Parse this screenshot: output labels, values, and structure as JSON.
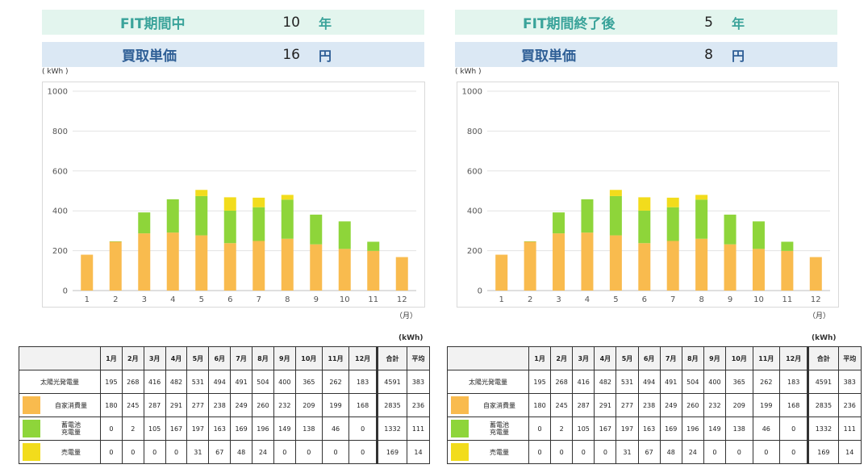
{
  "panels": [
    {
      "hdr1": {
        "label": "FIT期間中",
        "value": "10",
        "unit": "年"
      },
      "hdr2": {
        "label": "買取単価",
        "value": "16",
        "unit": "円"
      },
      "y_unit": "( kWh )",
      "x_unit": "（月）",
      "tbl_unit": "(kWh)"
    },
    {
      "hdr1": {
        "label": "FIT期間終了後",
        "value": "5",
        "unit": "年"
      },
      "hdr2": {
        "label": "買取単価",
        "value": "8",
        "unit": "円"
      },
      "y_unit": "( kWh )",
      "x_unit": "（月）",
      "tbl_unit": "(kWh)"
    }
  ],
  "table": {
    "headers": [
      "",
      "1月",
      "2月",
      "3月",
      "4月",
      "5月",
      "6月",
      "7月",
      "8月",
      "9月",
      "10月",
      "11月",
      "12月",
      "合計",
      "平均"
    ],
    "rows": [
      {
        "label": "太陽光発電量",
        "swatch": "",
        "values": [
          "195",
          "268",
          "416",
          "482",
          "531",
          "494",
          "491",
          "504",
          "400",
          "365",
          "262",
          "183",
          "4591",
          "383"
        ]
      },
      {
        "label": "自家消費量",
        "swatch": "#f9bb4e",
        "values": [
          "180",
          "245",
          "287",
          "291",
          "277",
          "238",
          "249",
          "260",
          "232",
          "209",
          "199",
          "168",
          "2835",
          "236"
        ]
      },
      {
        "label": "蓄電池\n充電量",
        "swatch": "#8ed53a",
        "values": [
          "0",
          "2",
          "105",
          "167",
          "197",
          "163",
          "169",
          "196",
          "149",
          "138",
          "46",
          "0",
          "1332",
          "111"
        ]
      },
      {
        "label": "売電量",
        "swatch": "#f2dc1c",
        "values": [
          "0",
          "0",
          "0",
          "0",
          "31",
          "67",
          "48",
          "24",
          "0",
          "0",
          "0",
          "0",
          "169",
          "14"
        ]
      }
    ]
  },
  "chart_data": [
    {
      "type": "bar",
      "stacked": true,
      "categories": [
        "1",
        "2",
        "3",
        "4",
        "5",
        "6",
        "7",
        "8",
        "9",
        "10",
        "11",
        "12"
      ],
      "series": [
        {
          "name": "自家消費量",
          "color": "#f9bb4e",
          "values": [
            180,
            245,
            287,
            291,
            277,
            238,
            249,
            260,
            232,
            209,
            199,
            168
          ]
        },
        {
          "name": "蓄電池充電量",
          "color": "#8ed53a",
          "values": [
            0,
            2,
            105,
            167,
            197,
            163,
            169,
            196,
            149,
            138,
            46,
            0
          ]
        },
        {
          "name": "売電量",
          "color": "#f2dc1c",
          "values": [
            0,
            0,
            0,
            0,
            31,
            67,
            48,
            24,
            0,
            0,
            0,
            0
          ]
        }
      ],
      "ylim": [
        0,
        1000
      ],
      "yticks": [
        0,
        200,
        400,
        600,
        800,
        1000
      ],
      "ylabel": "( kWh )",
      "xlabel": "（月）",
      "grid": true
    },
    {
      "type": "bar",
      "stacked": true,
      "categories": [
        "1",
        "2",
        "3",
        "4",
        "5",
        "6",
        "7",
        "8",
        "9",
        "10",
        "11",
        "12"
      ],
      "series": [
        {
          "name": "自家消費量",
          "color": "#f9bb4e",
          "values": [
            180,
            245,
            287,
            291,
            277,
            238,
            249,
            260,
            232,
            209,
            199,
            168
          ]
        },
        {
          "name": "蓄電池充電量",
          "color": "#8ed53a",
          "values": [
            0,
            2,
            105,
            167,
            197,
            163,
            169,
            196,
            149,
            138,
            46,
            0
          ]
        },
        {
          "name": "売電量",
          "color": "#f2dc1c",
          "values": [
            0,
            0,
            0,
            0,
            31,
            67,
            48,
            24,
            0,
            0,
            0,
            0
          ]
        }
      ],
      "ylim": [
        0,
        1000
      ],
      "yticks": [
        0,
        200,
        400,
        600,
        800,
        1000
      ],
      "ylabel": "( kWh )",
      "xlabel": "（月）",
      "grid": true
    }
  ]
}
